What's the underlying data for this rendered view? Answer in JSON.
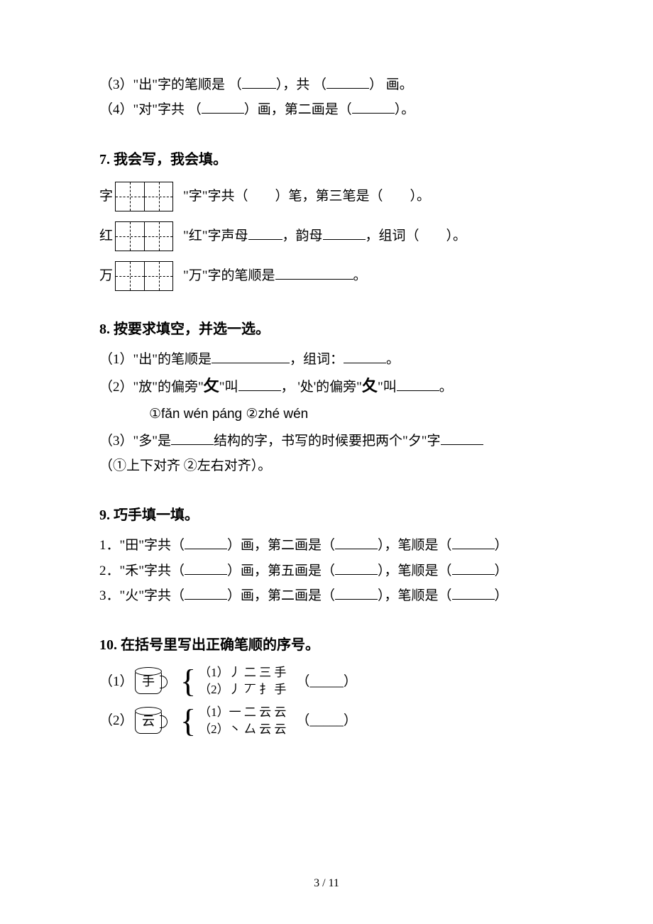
{
  "top": {
    "line3": "（3）\"出\"字的笔顺是 （",
    "line3_mid": "），共 （",
    "line3_end": "） 画。",
    "line4": "（4）\"对\"字共  （",
    "line4_mid": "）画，第二画是（",
    "line4_end": "）。"
  },
  "s7": {
    "heading": "7.  我会写，我会填。",
    "row1_char": "字",
    "row1_text_a": "\"字\"字共（　　）笔，第三笔是（　　）。",
    "row2_char": "红",
    "row2_text_a": "\"红\"字声母",
    "row2_text_b": "，韵母",
    "row2_text_c": "，组词（　　）。",
    "row3_char": "万",
    "row3_text_a": "\"万\"字的笔顺是",
    "row3_text_b": "。"
  },
  "s8": {
    "heading": "8.  按要求填空，并选一选。",
    "l1_a": "（1）\"出\"的笔顺是",
    "l1_b": "，组词：",
    "l1_c": "。",
    "l2_a": "（2）\"放\"的偏旁\"",
    "radical1": "攵",
    "l2_b": "\"叫",
    "l2_c": "， '处'的偏旁\"",
    "radical2": "夂",
    "l2_d": "\"叫",
    "l2_e": "。",
    "pinyin": "①fǎn wén páng   ②zhé wén",
    "l3_a": "（3）\"多\"是",
    "l3_b": "结构的字，书写的时候要把两个\"夕\"字",
    "l4": "（①上下对齐   ②左右对齐）。"
  },
  "s9": {
    "heading": "9.  巧手填一填。",
    "l1": "1．\"田\"字共（",
    "mid1": "）画，第二画是（",
    "mid2": "），笔顺是（",
    "end": "）",
    "l2": "2．\"禾\"字共（",
    "mid1b": "）画，第五画是（",
    "l3": "3．\"火\"字共（",
    "mid1c": "）画，第二画是（"
  },
  "s10": {
    "heading": "10.  在括号里写出正确笔顺的序号。",
    "row1_label": "（1）",
    "row1_char": "手",
    "row1_opt1": "（1）丿 二 三 手",
    "row1_opt2": "（2）丿 丆 扌 手",
    "row2_label": "（2）",
    "row2_char": "云",
    "row2_opt1": "（1）一 二 云 云",
    "row2_opt2": "（2）丶 厶 云 云",
    "paren": "（_____）"
  },
  "pagenum": "3 / 11"
}
